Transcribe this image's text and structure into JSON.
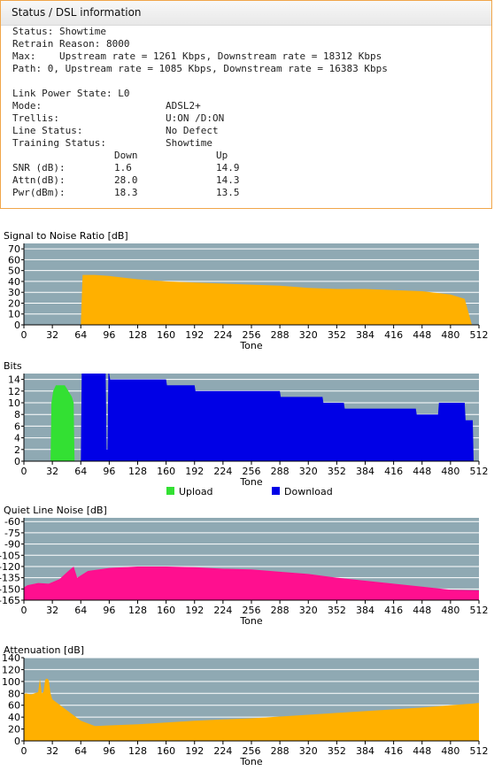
{
  "status": {
    "title": "Status / DSL information",
    "lines": [
      "Status: Showtime",
      "Retrain Reason: 8000",
      "Max:    Upstream rate = 1261 Kbps, Downstream rate = 18312 Kbps",
      "Path: 0, Upstream rate = 1085 Kbps, Downstream rate = 16383 Kbps"
    ],
    "details": [
      {
        "label": "Link Power State: L0",
        "value": ""
      },
      {
        "label": "Mode:",
        "value": "ADSL2+"
      },
      {
        "label": "Trellis:",
        "value": "U:ON /D:ON"
      },
      {
        "label": "Line Status:",
        "value": "No Defect"
      },
      {
        "label": "Training Status:",
        "value": "Showtime"
      }
    ],
    "table": {
      "headers": [
        "",
        "Down",
        "Up"
      ],
      "rows": [
        [
          "SNR (dB):",
          "1.6",
          "14.9"
        ],
        [
          "Attn(dB):",
          "28.0",
          "14.3"
        ],
        [
          "Pwr(dBm):",
          "18.3",
          "13.5"
        ]
      ]
    }
  },
  "colors": {
    "plot_bg": "#8fa9b3",
    "grid": "#ffffff",
    "orange": "#ffb000",
    "green": "#33e033",
    "blue": "#0000e6",
    "pink": "#ff0f8f"
  },
  "chart_data": [
    {
      "type": "area",
      "title": "Signal to Noise Ratio [dB]",
      "xlabel": "Tone",
      "xlim": [
        0,
        512
      ],
      "xticks": [
        0,
        32,
        64,
        96,
        128,
        160,
        192,
        224,
        256,
        288,
        320,
        352,
        384,
        416,
        448,
        480,
        512
      ],
      "ylim": [
        0,
        75
      ],
      "yticks": [
        0,
        10,
        20,
        30,
        40,
        50,
        60,
        70
      ],
      "series": [
        {
          "color": "orange",
          "x": [
            64,
            66,
            80,
            96,
            128,
            160,
            192,
            224,
            256,
            288,
            320,
            352,
            384,
            416,
            448,
            480,
            496,
            504
          ],
          "y": [
            0,
            46,
            46,
            45,
            42,
            40,
            39,
            38,
            37,
            36,
            34,
            33,
            33,
            32,
            31,
            28,
            24,
            0
          ]
        }
      ]
    },
    {
      "type": "area",
      "title": "Bits",
      "xlabel": "Tone",
      "xlim": [
        0,
        512
      ],
      "xticks": [
        0,
        32,
        64,
        96,
        128,
        160,
        192,
        224,
        256,
        288,
        320,
        352,
        384,
        416,
        448,
        480,
        512
      ],
      "ylim": [
        0,
        15
      ],
      "yticks": [
        0,
        2,
        4,
        6,
        8,
        10,
        12,
        14
      ],
      "legend": [
        "Upload",
        "Download"
      ],
      "series": [
        {
          "name": "Upload",
          "color": "green",
          "x": [
            30,
            31,
            33,
            36,
            40,
            46,
            50,
            54,
            56,
            57
          ],
          "y": [
            0,
            10,
            12,
            13,
            13,
            13,
            12,
            11,
            10,
            0
          ]
        },
        {
          "name": "Download",
          "color": "blue",
          "x": [
            64,
            65,
            92,
            93,
            94,
            95,
            96,
            97,
            100,
            101,
            124,
            125,
            160,
            161,
            192,
            193,
            288,
            289,
            336,
            337,
            360,
            361,
            441,
            442,
            450,
            451,
            460,
            461,
            466,
            467,
            496,
            497,
            504,
            505,
            506
          ],
          "y": [
            0,
            15,
            15,
            2,
            2,
            15,
            15,
            14,
            14,
            14,
            14,
            14,
            14,
            13,
            13,
            12,
            12,
            11,
            11,
            10,
            10,
            9,
            9,
            8,
            8,
            8,
            8,
            8,
            8,
            10,
            10,
            7,
            7,
            7,
            0
          ]
        }
      ]
    },
    {
      "type": "area",
      "title": "Quiet Line Noise [dB]",
      "xlabel": "Tone",
      "xlim": [
        0,
        512
      ],
      "xticks": [
        0,
        32,
        64,
        96,
        128,
        160,
        192,
        224,
        256,
        288,
        320,
        352,
        384,
        416,
        448,
        480,
        512
      ],
      "ylim": [
        -165,
        -55
      ],
      "yticks": [
        -60,
        -75,
        -90,
        -105,
        -120,
        -135,
        -150,
        -165
      ],
      "series": [
        {
          "color": "pink",
          "x": [
            0,
            4,
            16,
            28,
            40,
            50,
            56,
            60,
            72,
            96,
            128,
            160,
            192,
            224,
            256,
            288,
            320,
            352,
            384,
            416,
            448,
            480,
            512
          ],
          "y": [
            -148,
            -145,
            -142,
            -143,
            -137,
            -126,
            -120,
            -135,
            -126,
            -122,
            -120,
            -120,
            -121,
            -123,
            -124,
            -127,
            -130,
            -135,
            -139,
            -143,
            -147,
            -151,
            -152
          ]
        }
      ]
    },
    {
      "type": "area",
      "title": "Attenuation [dB]",
      "xlabel": "Tone",
      "xlim": [
        0,
        512
      ],
      "xticks": [
        0,
        32,
        64,
        96,
        128,
        160,
        192,
        224,
        256,
        288,
        320,
        352,
        384,
        416,
        448,
        480,
        512
      ],
      "ylim": [
        0,
        140
      ],
      "yticks": [
        0,
        20,
        40,
        60,
        80,
        100,
        120,
        140
      ],
      "series": [
        {
          "color": "orange",
          "x": [
            0,
            2,
            8,
            12,
            16,
            18,
            20,
            22,
            24,
            26,
            28,
            30,
            32,
            48,
            64,
            80,
            96,
            128,
            160,
            192,
            224,
            256,
            288,
            320,
            352,
            384,
            416,
            448,
            480,
            506,
            512
          ],
          "y": [
            78,
            80,
            78,
            80,
            82,
            105,
            80,
            82,
            103,
            105,
            102,
            80,
            70,
            52,
            34,
            25,
            26,
            28,
            31,
            34,
            36,
            38,
            41,
            44,
            47,
            50,
            53,
            56,
            60,
            63,
            64
          ]
        }
      ]
    }
  ]
}
